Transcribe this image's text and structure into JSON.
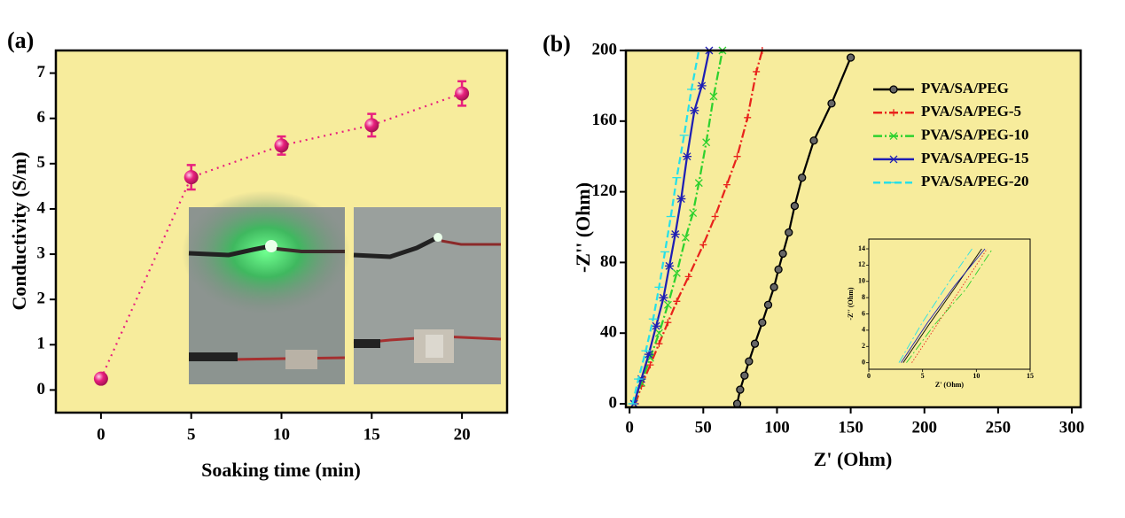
{
  "chart_data": [
    {
      "type": "scatter",
      "panel_label": "(a)",
      "xlabel": "Soaking time (min)",
      "ylabel": "Conductivity (S/m)",
      "xlim": [
        -2.5,
        22.5
      ],
      "ylim": [
        -0.5,
        7.5
      ],
      "xticks": [
        0,
        5,
        10,
        15,
        20
      ],
      "yticks": [
        0,
        1,
        2,
        3,
        4,
        5,
        6,
        7
      ],
      "background": "#f7ec9c",
      "line_style": "dotted",
      "series": [
        {
          "color": "#e8207e",
          "marker": "circle",
          "x": [
            0,
            5,
            10,
            15,
            20
          ],
          "values": [
            0.25,
            4.7,
            5.4,
            5.85,
            6.55
          ],
          "errors": [
            0.1,
            0.27,
            0.2,
            0.25,
            0.27
          ]
        }
      ]
    },
    {
      "type": "line",
      "panel_label": "(b)",
      "xlabel": "Z' (Ohm)",
      "ylabel": "-Z'' (Ohm)",
      "xlim": [
        -2.5,
        306
      ],
      "ylim": [
        -2,
        200
      ],
      "xticks": [
        0,
        50,
        100,
        150,
        200,
        250,
        300
      ],
      "yticks": [
        0,
        40,
        80,
        120,
        160,
        200
      ],
      "background": "#f7ec9c",
      "legend": "upper right",
      "series": [
        {
          "name": "PVA/SA/PEG",
          "color": "#000000",
          "marker": "circle",
          "line_style": "solid",
          "x": [
            73,
            75,
            78,
            81,
            85,
            90,
            94,
            98,
            101,
            104,
            108,
            112,
            117,
            125,
            137,
            150
          ],
          "values": [
            0,
            8,
            16,
            24,
            34,
            46,
            56,
            66,
            76,
            85,
            97,
            112,
            128,
            149,
            170,
            196
          ]
        },
        {
          "name": "PVA/SA/PEG-5",
          "color": "#e8231c",
          "marker": "plus",
          "line_style": "dashdot",
          "x": [
            4,
            8,
            14,
            20,
            26,
            32,
            40,
            50,
            58,
            66,
            73,
            80,
            86,
            90
          ],
          "values": [
            0,
            10,
            22,
            34,
            46,
            58,
            72,
            90,
            106,
            124,
            140,
            162,
            188,
            200
          ]
        },
        {
          "name": "PVA/SA/PEG-10",
          "color": "#2ed12e",
          "marker": "x",
          "line_style": "dashdot",
          "x": [
            3,
            8,
            14,
            20,
            26,
            32,
            38,
            43,
            47,
            52,
            57,
            63
          ],
          "values": [
            0,
            12,
            26,
            40,
            56,
            74,
            94,
            108,
            125,
            148,
            174,
            200
          ]
        },
        {
          "name": "PVA/SA/PEG-15",
          "color": "#1f1fb4",
          "marker": "star",
          "line_style": "solid",
          "x": [
            3,
            8,
            13,
            18,
            23,
            27,
            31,
            35,
            39,
            44,
            49,
            54
          ],
          "values": [
            0,
            14,
            28,
            44,
            60,
            78,
            96,
            116,
            140,
            166,
            180,
            200
          ]
        },
        {
          "name": "PVA/SA/PEG-20",
          "color": "#27e0e8",
          "marker": "dash",
          "line_style": "dash",
          "x": [
            2,
            6,
            11,
            16,
            20,
            24,
            28,
            32,
            37,
            42,
            47
          ],
          "values": [
            0,
            14,
            30,
            48,
            66,
            86,
            106,
            128,
            152,
            178,
            200
          ]
        }
      ]
    },
    {
      "type": "line",
      "xlabel": "Z' (Ohm)",
      "ylabel": "-Z'' (Ohm)",
      "xlim": [
        0,
        15
      ],
      "ylim": [
        -0.8,
        15.2
      ],
      "xticks": [
        0,
        5,
        10,
        15
      ],
      "yticks": [
        0,
        2,
        4,
        6,
        8,
        10,
        12,
        14
      ],
      "background": "#f7ec9c",
      "series": [
        {
          "color": "#000000",
          "line_style": "solid",
          "x": [
            3.2,
            5.5,
            8,
            10.5
          ],
          "values": [
            0,
            4.5,
            9.2,
            14
          ]
        },
        {
          "color": "#e8231c",
          "line_style": "dot",
          "x": [
            4,
            6,
            8.5,
            11
          ],
          "values": [
            0,
            4,
            9,
            14
          ]
        },
        {
          "color": "#2ed12e",
          "line_style": "dashdot",
          "x": [
            3.5,
            6,
            9,
            11.5
          ],
          "values": [
            0,
            4.5,
            9,
            14
          ]
        },
        {
          "color": "#1f1fb4",
          "line_style": "solid",
          "x": [
            3,
            5.5,
            8,
            10.8
          ],
          "values": [
            0,
            5,
            9.5,
            14
          ]
        },
        {
          "color": "#27e0e8",
          "line_style": "dashdot",
          "x": [
            2.8,
            5,
            7.5,
            9.6
          ],
          "values": [
            0,
            5,
            10,
            14
          ]
        }
      ]
    }
  ]
}
